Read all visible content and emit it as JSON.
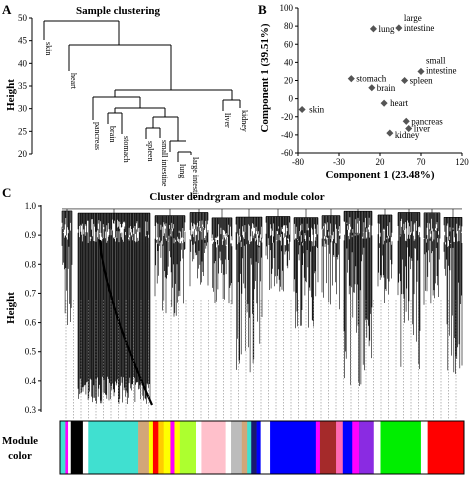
{
  "panel_a": {
    "letter": "A",
    "title": "Sample clustering",
    "ylabel": "Height",
    "yticks": [
      20,
      25,
      30,
      35,
      40,
      45,
      50
    ],
    "leaves": [
      "skin",
      "heart",
      "pancreas",
      "brain",
      "stomach",
      "spleen",
      "small intestine",
      "lung",
      "large intestin",
      "liver",
      "kidney"
    ]
  },
  "panel_c": {
    "letter": "C",
    "title": "Cluster dendrgram and module color",
    "ylabel": "Height",
    "yticks": [
      "0.3",
      "0.4",
      "0.5",
      "0.6",
      "0.7",
      "0.8",
      "0.9",
      "1.0"
    ],
    "module_label_1": "Module",
    "module_label_2": "color",
    "module_colors": [
      {
        "color": "#40e0d0",
        "w": 4
      },
      {
        "color": "#ff00ff",
        "w": 2
      },
      {
        "color": "#ffffff",
        "w": 2
      },
      {
        "color": "#000000",
        "w": 9
      },
      {
        "color": "#ffffff",
        "w": 4
      },
      {
        "color": "#40e0d0",
        "w": 37
      },
      {
        "color": "#d2a679",
        "w": 8
      },
      {
        "color": "#ffff00",
        "w": 3
      },
      {
        "color": "#ff0000",
        "w": 4
      },
      {
        "color": "#ffcc00",
        "w": 4
      },
      {
        "color": "#ffff00",
        "w": 5
      },
      {
        "color": "#ff00ff",
        "w": 3
      },
      {
        "color": "#ffff00",
        "w": 4
      },
      {
        "color": "#adff2f",
        "w": 12
      },
      {
        "color": "#ffffff",
        "w": 4
      },
      {
        "color": "#ffc0cb",
        "w": 18
      },
      {
        "color": "#ffffff",
        "w": 4
      },
      {
        "color": "#bcbcbc",
        "w": 8
      },
      {
        "color": "#d2a679",
        "w": 4
      },
      {
        "color": "#40e0d0",
        "w": 3
      },
      {
        "color": "#191970",
        "w": 4
      },
      {
        "color": "#0000ff",
        "w": 3
      },
      {
        "color": "#ffffff",
        "w": 3
      },
      {
        "color": "#ffffff",
        "w": 4
      },
      {
        "color": "#0000ff",
        "w": 34
      },
      {
        "color": "#ff00ff",
        "w": 3
      },
      {
        "color": "#a52a2a",
        "w": 12
      },
      {
        "color": "#ff69b4",
        "w": 5
      },
      {
        "color": "#0000ff",
        "w": 7
      },
      {
        "color": "#ff00ff",
        "w": 5
      },
      {
        "color": "#8a2be2",
        "w": 11
      },
      {
        "color": "#ffffff",
        "w": 5
      },
      {
        "color": "#00ee00",
        "w": 30
      },
      {
        "color": "#ffffff",
        "w": 5
      },
      {
        "color": "#ff0000",
        "w": 27
      }
    ]
  },
  "chart_data": {
    "type": "scatter",
    "letter": "B",
    "xlabel": "Component 1 (23.48%)",
    "ylabel": "Component 1 (39.51%)",
    "xlim": [
      -80,
      120
    ],
    "ylim": [
      -60,
      100
    ],
    "xticks": [
      -80,
      -30,
      20,
      70,
      120
    ],
    "yticks": [
      -60,
      -40,
      -20,
      0,
      20,
      40,
      60,
      80,
      100
    ],
    "points": [
      {
        "label": "lung",
        "x": 12,
        "y": 77
      },
      {
        "label": "large intestine",
        "x": 43,
        "y": 78
      },
      {
        "label": "small intestine",
        "x": 70,
        "y": 30
      },
      {
        "label": "stomach",
        "x": -15,
        "y": 22
      },
      {
        "label": "brain",
        "x": 10,
        "y": 12
      },
      {
        "label": "spleen",
        "x": 50,
        "y": 20
      },
      {
        "label": "heart",
        "x": 25,
        "y": -5
      },
      {
        "label": "skin",
        "x": -75,
        "y": -12
      },
      {
        "label": "pancreas",
        "x": 52,
        "y": -25
      },
      {
        "label": "liver",
        "x": 55,
        "y": -33
      },
      {
        "label": "kidney",
        "x": 32,
        "y": -38
      }
    ]
  }
}
